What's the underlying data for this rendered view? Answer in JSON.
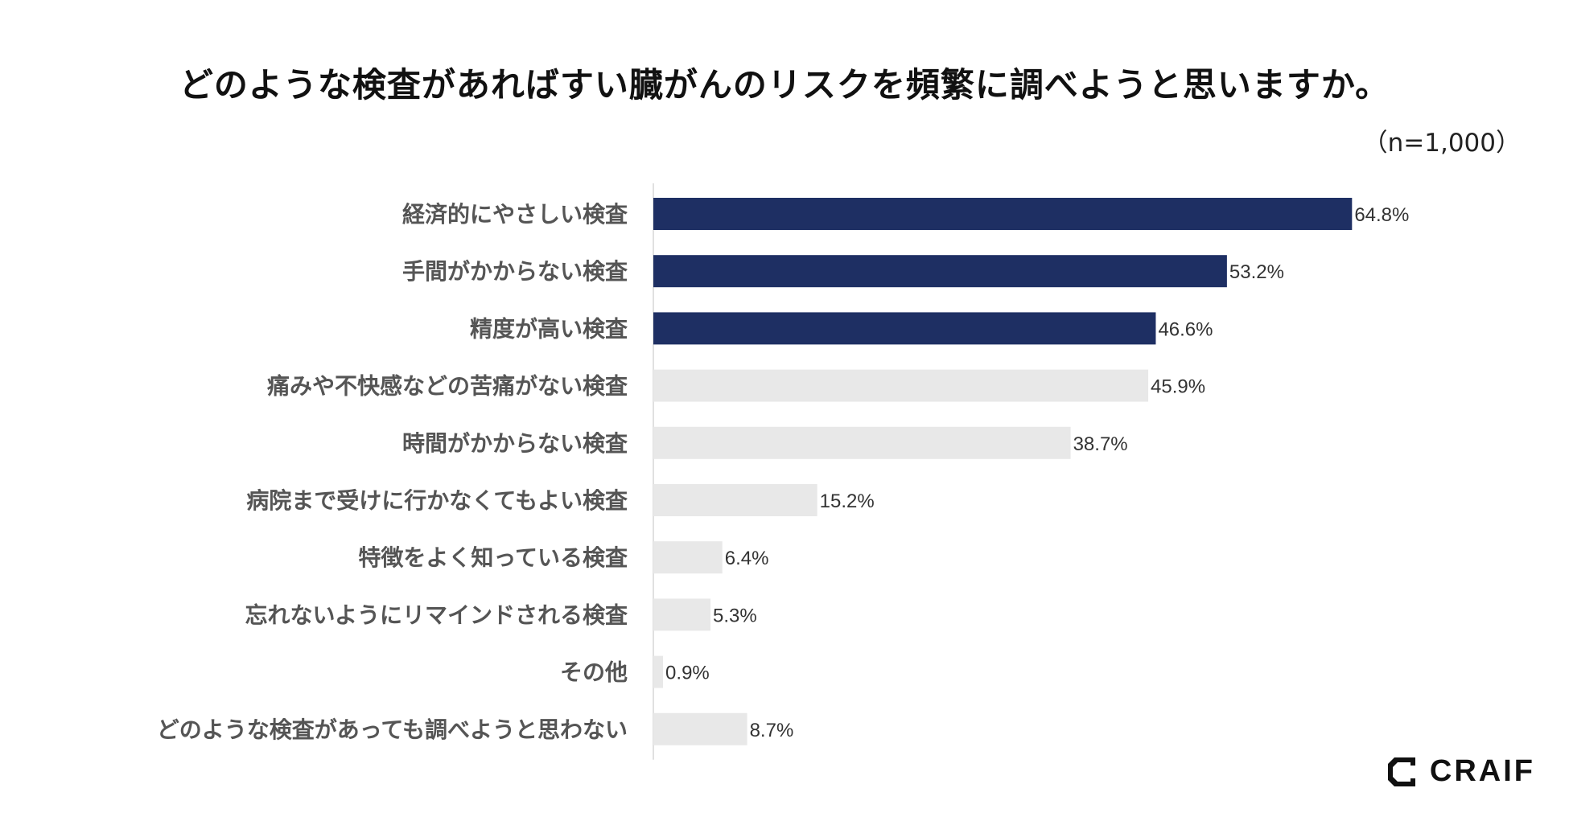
{
  "title": "どのような検査があればすい臓がんのリスクを頻繁に調べようと思いますか。",
  "sample_size": "（n=1,000）",
  "logo_text": "CRAIF",
  "colors": {
    "highlight": "#1e2f63",
    "default": "#e8e8e8",
    "axis": "#e0e0e0"
  },
  "chart_data": {
    "type": "bar",
    "orientation": "horizontal",
    "title": "どのような検査があればすい臓がんのリスクを頻繁に調べようと思いますか。",
    "xlabel": "",
    "ylabel": "",
    "xlim": [
      0,
      100
    ],
    "unit": "%",
    "categories": [
      "経済的にやさしい検査",
      "手間がかからない検査",
      "精度が高い検査",
      "痛みや不快感などの苦痛がない検査",
      "時間がかからない検査",
      "病院まで受けに行かなくてもよい検査",
      "特徴をよく知っている検査",
      "忘れないようにリマインドされる検査",
      "その他",
      "どのような検査があっても調べようと思わない"
    ],
    "values": [
      64.8,
      53.2,
      46.6,
      45.9,
      38.7,
      15.2,
      6.4,
      5.3,
      0.9,
      8.7
    ],
    "value_labels": [
      "64.8%",
      "53.2%",
      "46.6%",
      "45.9%",
      "38.7%",
      "15.2%",
      "6.4%",
      "5.3%",
      "0.9%",
      "8.7%"
    ],
    "highlighted": [
      true,
      true,
      true,
      false,
      false,
      false,
      false,
      false,
      false,
      false
    ]
  }
}
